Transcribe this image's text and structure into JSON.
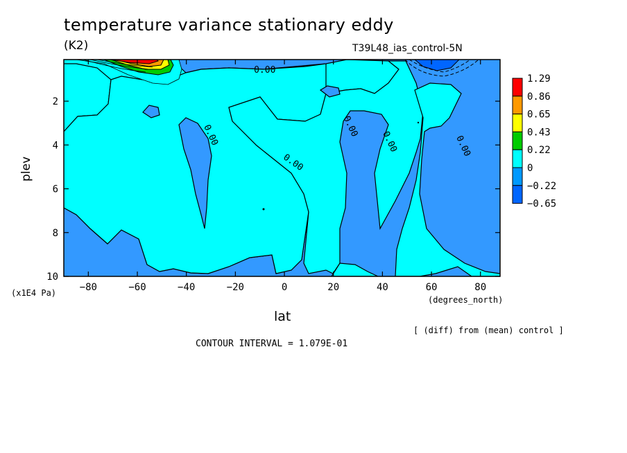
{
  "header": {
    "title": "temperature variance stationary eddy",
    "units": "(K2)",
    "run_label": "T39L48_ias_control-5N"
  },
  "axes": {
    "x_label": "lat",
    "x_unit": "(degrees_north)",
    "y_label": "plev",
    "y_unit": "(x1E4 Pa)"
  },
  "footer": {
    "diff_note": "[ (diff) from (mean) control ]",
    "contour_interval": "CONTOUR INTERVAL = 1.079E-01"
  },
  "chart_data": {
    "type": "heatmap",
    "title": "temperature variance stationary eddy",
    "xlabel": "lat",
    "ylabel": "plev",
    "xlim": [
      -90,
      88
    ],
    "ylim": [
      10,
      0.1
    ],
    "x_ticks": [
      -80,
      -60,
      -40,
      -20,
      0,
      20,
      40,
      60,
      80
    ],
    "x_tick_labels": [
      "-80",
      "-60",
      "-40",
      "-20",
      "0",
      "20",
      "40",
      "60",
      "80"
    ],
    "y_ticks": [
      2,
      4,
      6,
      8,
      10
    ],
    "y_tick_labels": [
      "2",
      "4",
      "6",
      "8",
      "10"
    ],
    "contour_labels": [
      {
        "text": "0.00",
        "x": -8,
        "y": 0.7
      },
      {
        "text": "0.00",
        "x": -31,
        "y": 3.6
      },
      {
        "text": "0.00",
        "x": 3,
        "y": 4.9
      },
      {
        "text": "0.00",
        "x": 26,
        "y": 3.2
      },
      {
        "text": "0.00",
        "x": 42,
        "y": 3.9
      },
      {
        "text": "0.00",
        "x": 72,
        "y": 4.1
      }
    ],
    "legend": {
      "placement": "right",
      "colors": [
        "#ff0000",
        "#ff9900",
        "#ffff00",
        "#00cc00",
        "#00ffff",
        "#0099ff",
        "#0066ff"
      ],
      "labels": [
        "1.29",
        "0.86",
        "0.65",
        "0.43",
        "0.22",
        "0",
        "-0.22",
        "-0.65"
      ]
    },
    "region_colors": {
      "positive_small": "#00ffff",
      "negative_small": "#3399ff",
      "negative_large": "#0066ff"
    }
  }
}
